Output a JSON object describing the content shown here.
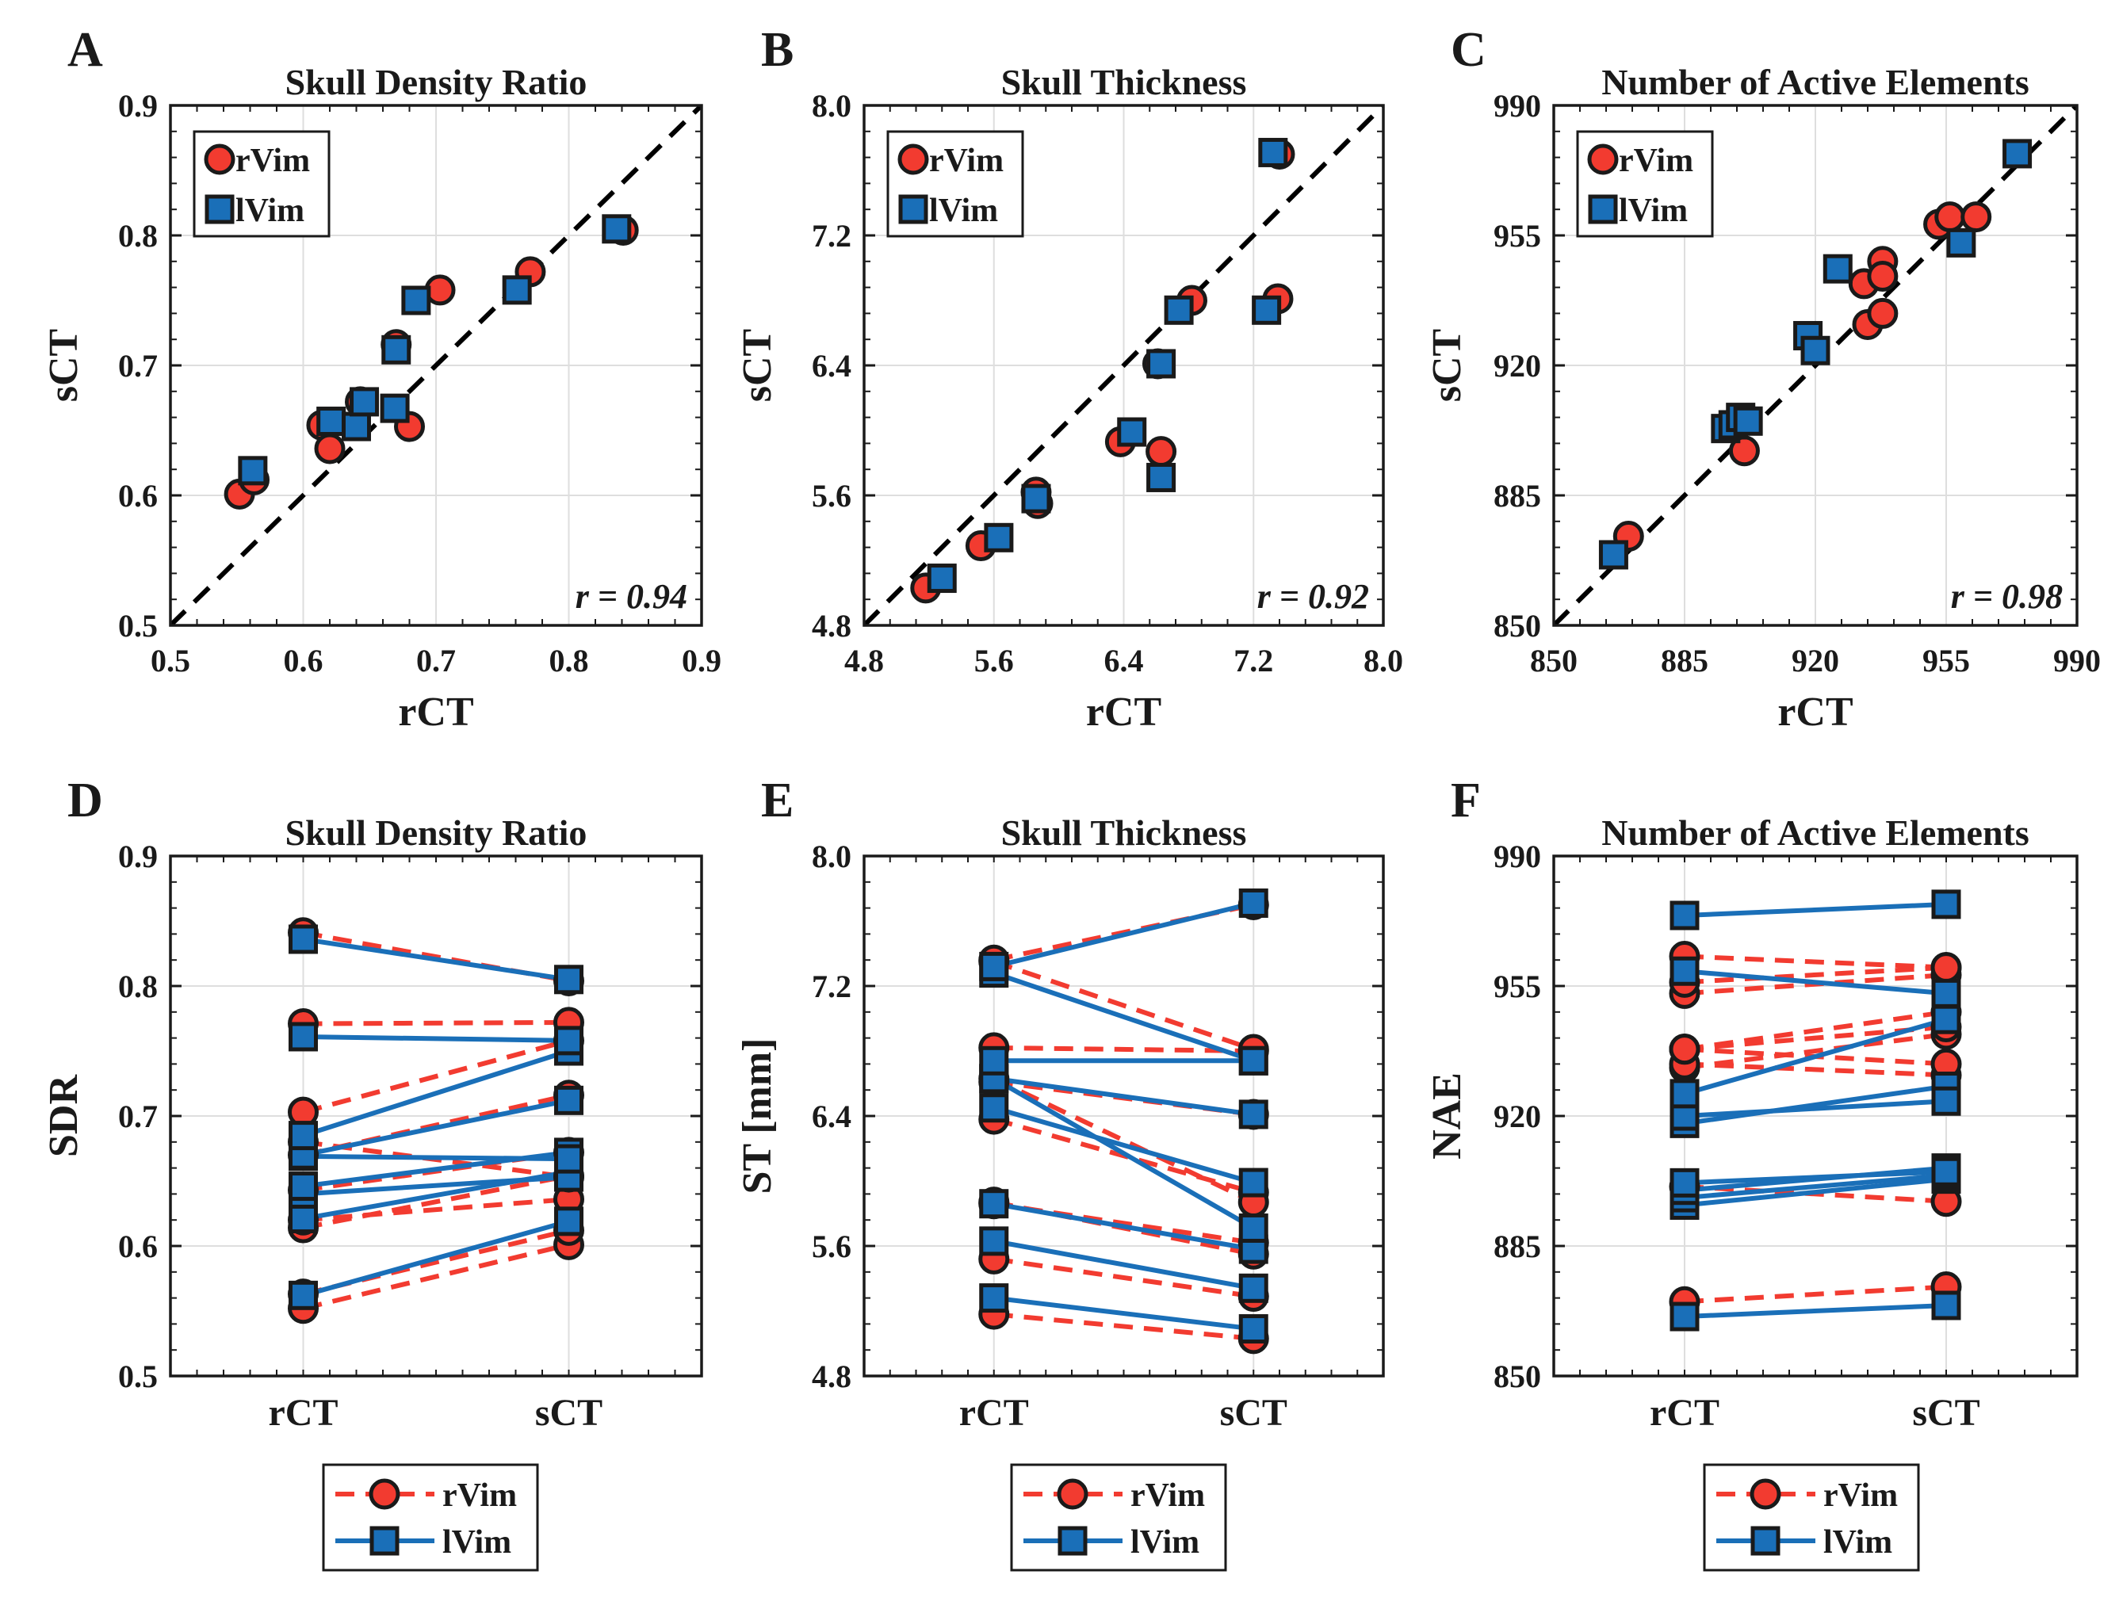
{
  "colors": {
    "rVim": "#f23b30",
    "lVim": "#1a6fb8",
    "ink": "#1a1a1a",
    "grid": "#dedede",
    "identity": "#000000"
  },
  "chart_data": [
    {
      "panel": "A",
      "type": "scatter",
      "title": "Skull Density Ratio",
      "xlabel": "rCT",
      "ylabel": "sCT",
      "xlim": [
        0.5,
        0.9
      ],
      "ylim": [
        0.5,
        0.9
      ],
      "xticks": [
        0.5,
        0.6,
        0.7,
        0.8,
        0.9
      ],
      "yticks": [
        0.5,
        0.6,
        0.7,
        0.8,
        0.9
      ],
      "decimals": 1,
      "identity_line": true,
      "annotation": "r = 0.94",
      "legend_position": "top-left",
      "series": [
        {
          "name": "rVim",
          "marker": "circle",
          "points": [
            [
              0.552,
              0.601
            ],
            [
              0.563,
              0.612
            ],
            [
              0.614,
              0.654
            ],
            [
              0.62,
              0.636
            ],
            [
              0.643,
              0.672
            ],
            [
              0.67,
              0.716
            ],
            [
              0.68,
              0.653
            ],
            [
              0.703,
              0.758
            ],
            [
              0.771,
              0.772
            ],
            [
              0.841,
              0.804
            ]
          ]
        },
        {
          "name": "lVim",
          "marker": "square",
          "points": [
            [
              0.562,
              0.619
            ],
            [
              0.621,
              0.657
            ],
            [
              0.64,
              0.653
            ],
            [
              0.646,
              0.672
            ],
            [
              0.669,
              0.667
            ],
            [
              0.67,
              0.712
            ],
            [
              0.685,
              0.75
            ],
            [
              0.761,
              0.758
            ],
            [
              0.836,
              0.805
            ]
          ]
        }
      ]
    },
    {
      "panel": "B",
      "type": "scatter",
      "title": "Skull Thickness",
      "xlabel": "rCT",
      "ylabel": "sCT",
      "xlim": [
        4.8,
        8.0
      ],
      "ylim": [
        4.8,
        8.0
      ],
      "xticks": [
        4.8,
        5.6,
        6.4,
        7.2,
        8.0
      ],
      "yticks": [
        4.8,
        5.6,
        6.4,
        7.2,
        8.0
      ],
      "decimals": 1,
      "identity_line": true,
      "annotation": "r = 0.92",
      "legend_position": "top-left",
      "series": [
        {
          "name": "rVim",
          "marker": "circle",
          "points": [
            [
              5.18,
              5.03
            ],
            [
              5.52,
              5.29
            ],
            [
              5.86,
              5.62
            ],
            [
              5.87,
              5.55
            ],
            [
              6.38,
              5.93
            ],
            [
              6.61,
              6.41
            ],
            [
              6.63,
              5.87
            ],
            [
              6.82,
              6.8
            ],
            [
              7.35,
              6.81
            ],
            [
              7.36,
              7.7
            ]
          ]
        },
        {
          "name": "lVim",
          "marker": "square",
          "points": [
            [
              5.28,
              5.09
            ],
            [
              5.63,
              5.34
            ],
            [
              5.86,
              5.58
            ],
            [
              6.45,
              5.99
            ],
            [
              6.63,
              6.41
            ],
            [
              6.63,
              5.71
            ],
            [
              6.74,
              6.74
            ],
            [
              7.28,
              6.74
            ],
            [
              7.32,
              7.71
            ]
          ]
        }
      ]
    },
    {
      "panel": "C",
      "type": "scatter",
      "title": "Number of Active Elements",
      "xlabel": "rCT",
      "ylabel": "sCT",
      "xlim": [
        850,
        990
      ],
      "ylim": [
        850,
        990
      ],
      "xticks": [
        850,
        885,
        920,
        955,
        990
      ],
      "yticks": [
        850,
        885,
        920,
        955,
        990
      ],
      "decimals": 0,
      "identity_line": true,
      "annotation": "r = 0.98",
      "legend_position": "top-left",
      "series": [
        {
          "name": "rVim",
          "marker": "circle",
          "points": [
            [
              870,
              874
            ],
            [
              901,
              897
            ],
            [
              933,
              942
            ],
            [
              934,
              931
            ],
            [
              938,
              948
            ],
            [
              938,
              944
            ],
            [
              938,
              934
            ],
            [
              953,
              958
            ],
            [
              956,
              960
            ],
            [
              963,
              960
            ]
          ]
        },
        {
          "name": "lVim",
          "marker": "square",
          "points": [
            [
              866,
              869
            ],
            [
              896,
              903
            ],
            [
              898,
              904
            ],
            [
              900,
              906
            ],
            [
              902,
              905
            ],
            [
              918,
              928
            ],
            [
              920,
              924
            ],
            [
              926,
              946
            ],
            [
              959,
              953
            ],
            [
              974,
              977
            ]
          ]
        }
      ]
    },
    {
      "panel": "D",
      "type": "line",
      "title": "Skull Density Ratio",
      "xlabel": "",
      "ylabel": "SDR",
      "categories": [
        "rCT",
        "sCT"
      ],
      "ylim": [
        0.5,
        0.9
      ],
      "yticks": [
        0.5,
        0.6,
        0.7,
        0.8,
        0.9
      ],
      "decimals": 1,
      "legend_position": "bottom-outside",
      "series": [
        {
          "name": "rVim",
          "style": "dashed",
          "marker": "circle",
          "pairs": [
            [
              0.552,
              0.601
            ],
            [
              0.563,
              0.612
            ],
            [
              0.614,
              0.654
            ],
            [
              0.62,
              0.636
            ],
            [
              0.643,
              0.672
            ],
            [
              0.67,
              0.716
            ],
            [
              0.68,
              0.653
            ],
            [
              0.703,
              0.758
            ],
            [
              0.771,
              0.772
            ],
            [
              0.841,
              0.804
            ]
          ]
        },
        {
          "name": "lVim",
          "style": "solid",
          "marker": "square",
          "pairs": [
            [
              0.562,
              0.619
            ],
            [
              0.621,
              0.657
            ],
            [
              0.64,
              0.653
            ],
            [
              0.646,
              0.672
            ],
            [
              0.669,
              0.667
            ],
            [
              0.67,
              0.712
            ],
            [
              0.685,
              0.75
            ],
            [
              0.761,
              0.758
            ],
            [
              0.836,
              0.805
            ]
          ]
        }
      ]
    },
    {
      "panel": "E",
      "type": "line",
      "title": "Skull Thickness",
      "xlabel": "",
      "ylabel": "ST [mm]",
      "categories": [
        "rCT",
        "sCT"
      ],
      "ylim": [
        4.8,
        8.0
      ],
      "yticks": [
        4.8,
        5.6,
        6.4,
        7.2,
        8.0
      ],
      "decimals": 1,
      "legend_position": "bottom-outside",
      "series": [
        {
          "name": "rVim",
          "style": "dashed",
          "marker": "circle",
          "pairs": [
            [
              5.18,
              5.03
            ],
            [
              5.52,
              5.29
            ],
            [
              5.86,
              5.62
            ],
            [
              5.87,
              5.55
            ],
            [
              6.38,
              5.93
            ],
            [
              6.61,
              6.41
            ],
            [
              6.63,
              5.87
            ],
            [
              6.82,
              6.8
            ],
            [
              7.35,
              6.81
            ],
            [
              7.36,
              7.7
            ]
          ]
        },
        {
          "name": "lVim",
          "style": "solid",
          "marker": "square",
          "pairs": [
            [
              5.28,
              5.09
            ],
            [
              5.63,
              5.34
            ],
            [
              5.86,
              5.58
            ],
            [
              6.45,
              5.99
            ],
            [
              6.63,
              6.41
            ],
            [
              6.63,
              5.71
            ],
            [
              6.74,
              6.74
            ],
            [
              7.28,
              6.74
            ],
            [
              7.32,
              7.71
            ]
          ]
        }
      ]
    },
    {
      "panel": "F",
      "type": "line",
      "title": "Number of Active Elements",
      "xlabel": "",
      "ylabel": "NAE",
      "categories": [
        "rCT",
        "sCT"
      ],
      "ylim": [
        850,
        990
      ],
      "yticks": [
        850,
        885,
        920,
        955,
        990
      ],
      "decimals": 0,
      "legend_position": "bottom-outside",
      "series": [
        {
          "name": "rVim",
          "style": "dashed",
          "marker": "circle",
          "pairs": [
            [
              870,
              874
            ],
            [
              901,
              897
            ],
            [
              933,
              942
            ],
            [
              934,
              931
            ],
            [
              938,
              948
            ],
            [
              938,
              944
            ],
            [
              938,
              934
            ],
            [
              953,
              958
            ],
            [
              956,
              960
            ],
            [
              963,
              960
            ]
          ]
        },
        {
          "name": "lVim",
          "style": "solid",
          "marker": "square",
          "pairs": [
            [
              866,
              869
            ],
            [
              896,
              903
            ],
            [
              898,
              904
            ],
            [
              900,
              906
            ],
            [
              902,
              905
            ],
            [
              918,
              928
            ],
            [
              920,
              924
            ],
            [
              926,
              946
            ],
            [
              959,
              953
            ],
            [
              974,
              977
            ]
          ]
        }
      ]
    }
  ]
}
